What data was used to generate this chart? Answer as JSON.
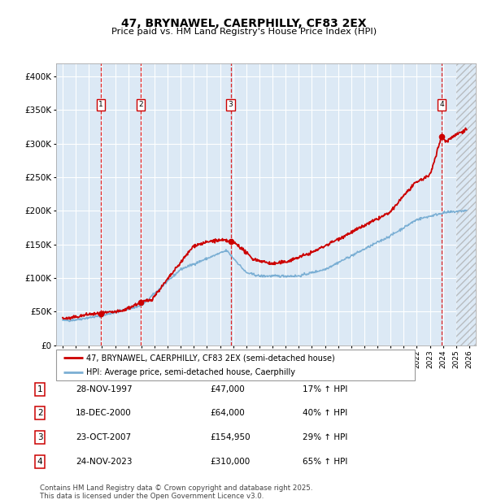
{
  "title": "47, BRYNAWEL, CAERPHILLY, CF83 2EX",
  "subtitle": "Price paid vs. HM Land Registry's House Price Index (HPI)",
  "legend_line1": "47, BRYNAWEL, CAERPHILLY, CF83 2EX (semi-detached house)",
  "legend_line2": "HPI: Average price, semi-detached house, Caerphilly",
  "footer": "Contains HM Land Registry data © Crown copyright and database right 2025.\nThis data is licensed under the Open Government Licence v3.0.",
  "transactions": [
    {
      "num": 1,
      "date": "28-NOV-1997",
      "price": 47000,
      "pct": "17%",
      "year_x": 1997.91
    },
    {
      "num": 2,
      "date": "18-DEC-2000",
      "price": 64000,
      "pct": "40%",
      "year_x": 2000.96
    },
    {
      "num": 3,
      "date": "23-OCT-2007",
      "price": 154950,
      "pct": "29%",
      "year_x": 2007.81
    },
    {
      "num": 4,
      "date": "24-NOV-2023",
      "price": 310000,
      "pct": "65%",
      "year_x": 2023.9
    }
  ],
  "red_line_color": "#cc0000",
  "blue_line_color": "#7bafd4",
  "bg_color": "#dce9f5",
  "grid_color": "#ffffff",
  "ylim": [
    0,
    420000
  ],
  "xlim_start": 1994.5,
  "xlim_end": 2026.5,
  "yticks": [
    0,
    50000,
    100000,
    150000,
    200000,
    250000,
    300000,
    350000,
    400000
  ],
  "ytick_labels": [
    "£0",
    "£50K",
    "£100K",
    "£150K",
    "£200K",
    "£250K",
    "£300K",
    "£350K",
    "£400K"
  ],
  "xtick_years": [
    1995,
    1996,
    1997,
    1998,
    1999,
    2000,
    2001,
    2002,
    2003,
    2004,
    2005,
    2006,
    2007,
    2008,
    2009,
    2010,
    2011,
    2012,
    2013,
    2014,
    2015,
    2016,
    2017,
    2018,
    2019,
    2020,
    2021,
    2022,
    2023,
    2024,
    2025,
    2026
  ]
}
